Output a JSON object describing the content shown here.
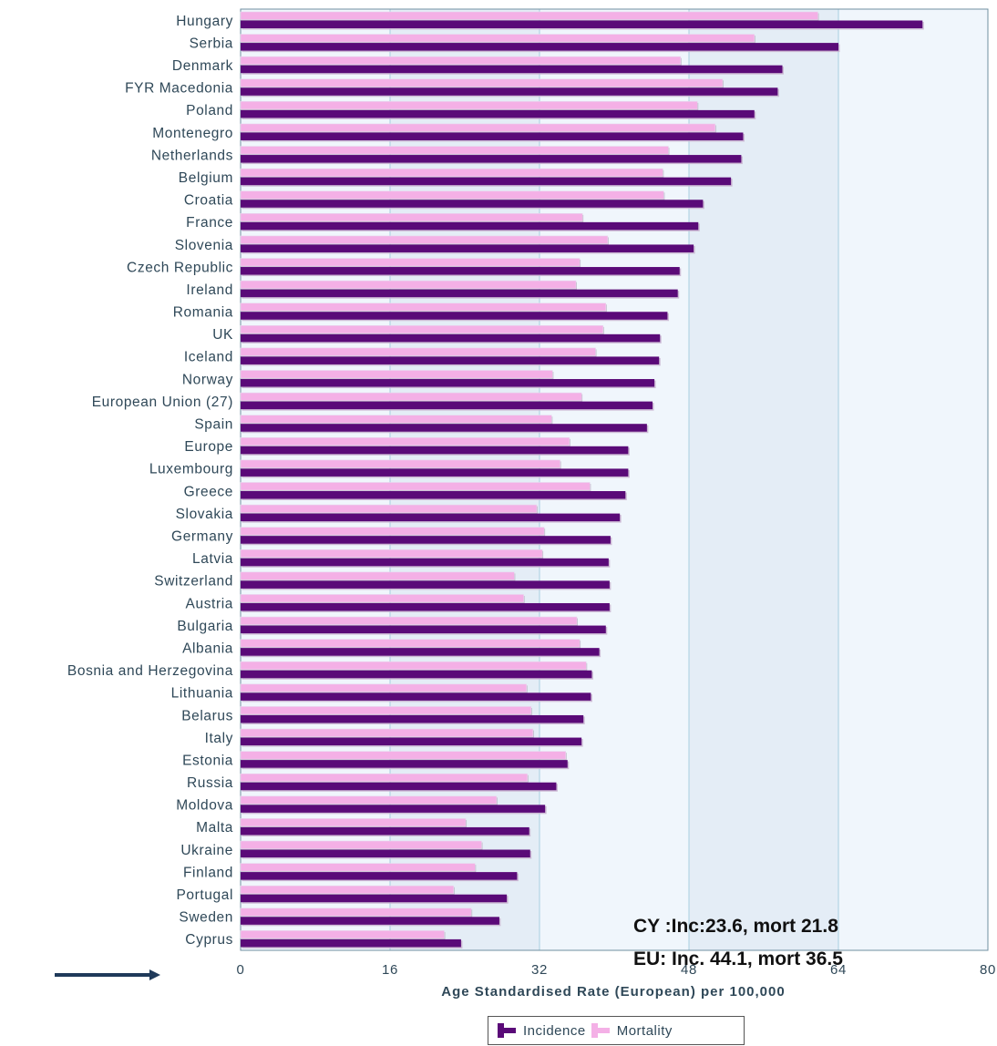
{
  "chart_data": {
    "type": "bar",
    "orientation": "horizontal",
    "categories": [
      "Hungary",
      "Serbia",
      "Denmark",
      "FYR Macedonia",
      "Poland",
      "Montenegro",
      "Netherlands",
      "Belgium",
      "Croatia",
      "France",
      "Slovenia",
      "Czech Republic",
      "Ireland",
      "Romania",
      "UK",
      "Iceland",
      "Norway",
      "European Union (27)",
      "Spain",
      "Europe",
      "Luxembourg",
      "Greece",
      "Slovakia",
      "Germany",
      "Latvia",
      "Switzerland",
      "Austria",
      "Bulgaria",
      "Albania",
      "Bosnia and Herzegovina",
      "Lithuania",
      "Belarus",
      "Italy",
      "Estonia",
      "Russia",
      "Moldova",
      "Malta",
      "Ukraine",
      "Finland",
      "Portugal",
      "Sweden",
      "Cyprus"
    ],
    "series": [
      {
        "name": "Incidence",
        "color": "#5a0a78",
        "values": [
          73.0,
          64.0,
          58.0,
          57.5,
          55.0,
          53.8,
          53.6,
          52.5,
          49.5,
          49.0,
          48.5,
          47.0,
          46.8,
          45.7,
          44.9,
          44.8,
          44.3,
          44.1,
          43.5,
          41.5,
          41.5,
          41.2,
          40.6,
          39.6,
          39.4,
          39.5,
          39.5,
          39.1,
          38.4,
          37.6,
          37.5,
          36.7,
          36.5,
          35.0,
          33.8,
          32.6,
          30.9,
          31.0,
          29.6,
          28.5,
          27.7,
          23.6
        ]
      },
      {
        "name": "Mortality",
        "color": "#f4b0e6",
        "values": [
          61.8,
          55.0,
          47.1,
          51.6,
          48.9,
          50.8,
          45.8,
          45.2,
          45.3,
          36.6,
          39.3,
          36.3,
          35.9,
          39.1,
          38.8,
          38.0,
          33.4,
          36.5,
          33.3,
          35.2,
          34.2,
          37.4,
          31.7,
          32.5,
          32.3,
          29.3,
          30.3,
          36.0,
          36.3,
          37.0,
          30.6,
          31.1,
          31.3,
          34.8,
          30.7,
          27.4,
          24.1,
          25.8,
          25.1,
          22.8,
          24.7,
          21.8
        ]
      }
    ],
    "xlim": [
      0,
      80
    ],
    "xticks": [
      "0",
      "16",
      "32",
      "48",
      "64",
      "80"
    ],
    "xlabel": "Age Standardised Rate (European) per 100,000",
    "legend": {
      "position": "bottom",
      "items": [
        "Incidence",
        "Mortality"
      ]
    }
  },
  "annotations": {
    "line1": "CY :Inc:23.6, mort 21.8",
    "line2": "EU: Inc. 44.1, mort 36.5"
  },
  "colors": {
    "plot_bg_light": "#f0f6fc",
    "plot_bg_dark": "#e4edf6",
    "grid": "#a8cfe0",
    "incidence": "#5a0a78",
    "mortality": "#f4b0e6",
    "arrow": "#1f3a5a"
  }
}
